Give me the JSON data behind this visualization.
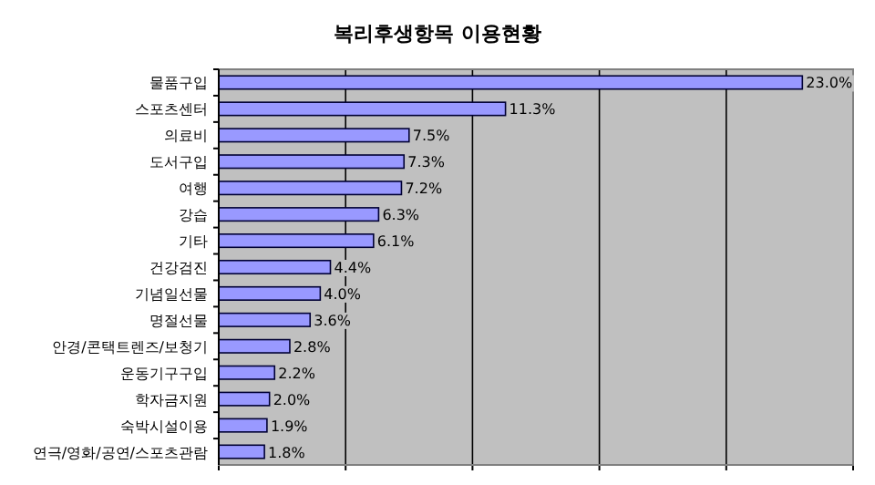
{
  "chart_data": {
    "type": "bar",
    "orientation": "horizontal",
    "title": "복리후생항목 이용현황",
    "categories": [
      "물품구입",
      "스포츠센터",
      "의료비",
      "도서구입",
      "여행",
      "강습",
      "기타",
      "건강검진",
      "기념일선물",
      "명절선물",
      "안경/콘택트렌즈/보청기",
      "운동기구구입",
      "학자금지원",
      "숙박시설이용",
      "연극/영화/공연/스포츠관람"
    ],
    "values": [
      23.0,
      11.3,
      7.5,
      7.3,
      7.2,
      6.3,
      6.1,
      4.4,
      4.0,
      3.6,
      2.8,
      2.2,
      2.0,
      1.9,
      1.8
    ],
    "value_labels": [
      "23.0%",
      "11.3%",
      "7.5%",
      "7.3%",
      "7.2%",
      "6.3%",
      "6.1%",
      "4.4%",
      "4.0%",
      "3.6%",
      "2.8%",
      "2.2%",
      "2.0%",
      "1.9%",
      "1.8%"
    ],
    "color": "#9999ff",
    "xlim": [
      0,
      25
    ],
    "xticks": [
      {
        "value": 0,
        "label": null
      },
      {
        "value": 5,
        "label": null
      },
      {
        "value": 10,
        "label": null
      },
      {
        "value": 15,
        "label": null
      },
      {
        "value": 20,
        "label": null
      },
      {
        "value": 25,
        "label": null
      }
    ],
    "grid": "x",
    "tick_labels": "y"
  }
}
